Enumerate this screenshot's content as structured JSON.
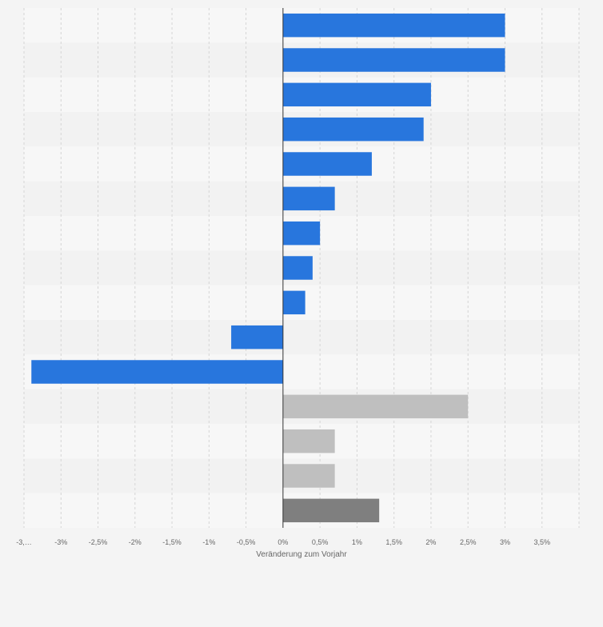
{
  "chart_data": {
    "type": "bar",
    "orientation": "horizontal",
    "xlabel": "Veränderung zum Vorjahr",
    "xlim": [
      -3.5,
      4
    ],
    "grid": true,
    "x_ticks": [
      -3.5,
      -3,
      -2.5,
      -2,
      -1.5,
      -1,
      -0.5,
      0,
      0.5,
      1,
      1.5,
      2,
      2.5,
      3,
      3.5
    ],
    "x_tick_labels": [
      "-3,…",
      "-3%",
      "-2,5%",
      "-2%",
      "-1,5%",
      "-1%",
      "-0,5%",
      "0%",
      "0,5%",
      "1%",
      "1,5%",
      "2%",
      "2,5%",
      "3%",
      "3,5%"
    ],
    "categories": [
      "",
      "",
      "",
      "",
      "",
      "",
      "",
      "",
      "",
      "",
      "",
      "",
      "",
      "",
      ""
    ],
    "values": [
      3.0,
      3.0,
      2.0,
      1.9,
      1.2,
      0.7,
      0.5,
      0.4,
      0.3,
      -0.7,
      -3.4,
      2.5,
      0.7,
      0.7,
      1.3
    ],
    "colors": {
      "primary": "#2876dd",
      "light_grey": "#bfbfbf",
      "dark_grey": "#7f7f7f",
      "axis": "#333333",
      "grid": "#d5d5d5",
      "band_light": "#f7f7f7",
      "band_dark": "#f2f2f2",
      "tick_text": "#666666"
    },
    "bar_colors": [
      "primary",
      "primary",
      "primary",
      "primary",
      "primary",
      "primary",
      "primary",
      "primary",
      "primary",
      "primary",
      "primary",
      "light_grey",
      "light_grey",
      "light_grey",
      "dark_grey"
    ]
  }
}
